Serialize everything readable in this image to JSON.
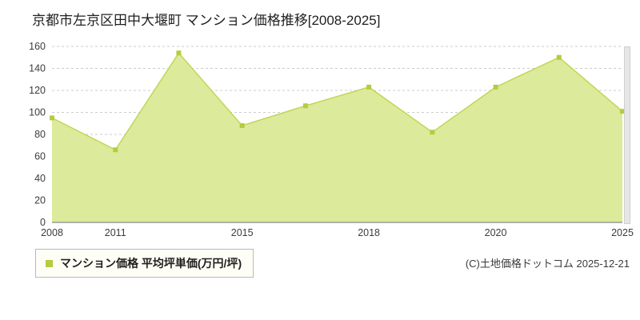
{
  "title": "京都市左京区田中大堰町 マンション価格推移[2008-2025]",
  "legend": {
    "label": "マンション価格 平均坪単価(万円/坪)"
  },
  "copyright": "(C)土地価格ドットコム 2025-12-21",
  "chart_data": {
    "type": "area",
    "title": "京都市左京区田中大堰町 マンション価格推移[2008-2025]",
    "series_name": "マンション価格 平均坪単価(万円/坪)",
    "values": [
      95,
      66,
      154,
      88,
      106,
      123,
      82,
      123,
      150,
      101
    ],
    "x_tick_labels": [
      {
        "label": "2008",
        "index": 0
      },
      {
        "label": "2011",
        "index": 1
      },
      {
        "label": "2015",
        "index": 3
      },
      {
        "label": "2018",
        "index": 5
      },
      {
        "label": "2020",
        "index": 7
      },
      {
        "label": "2025",
        "index": 9
      }
    ],
    "ylim": [
      0,
      160
    ],
    "ytick_step": 20,
    "grid": "horizontal-dashed",
    "legend_position": "bottom-left",
    "colors": {
      "fill": "#dcea9b",
      "line": "#c3d655",
      "point": "#b4cc40",
      "grid": "#cccccc",
      "axis": "#9a9a9a",
      "text": "#3c3c3c"
    }
  }
}
